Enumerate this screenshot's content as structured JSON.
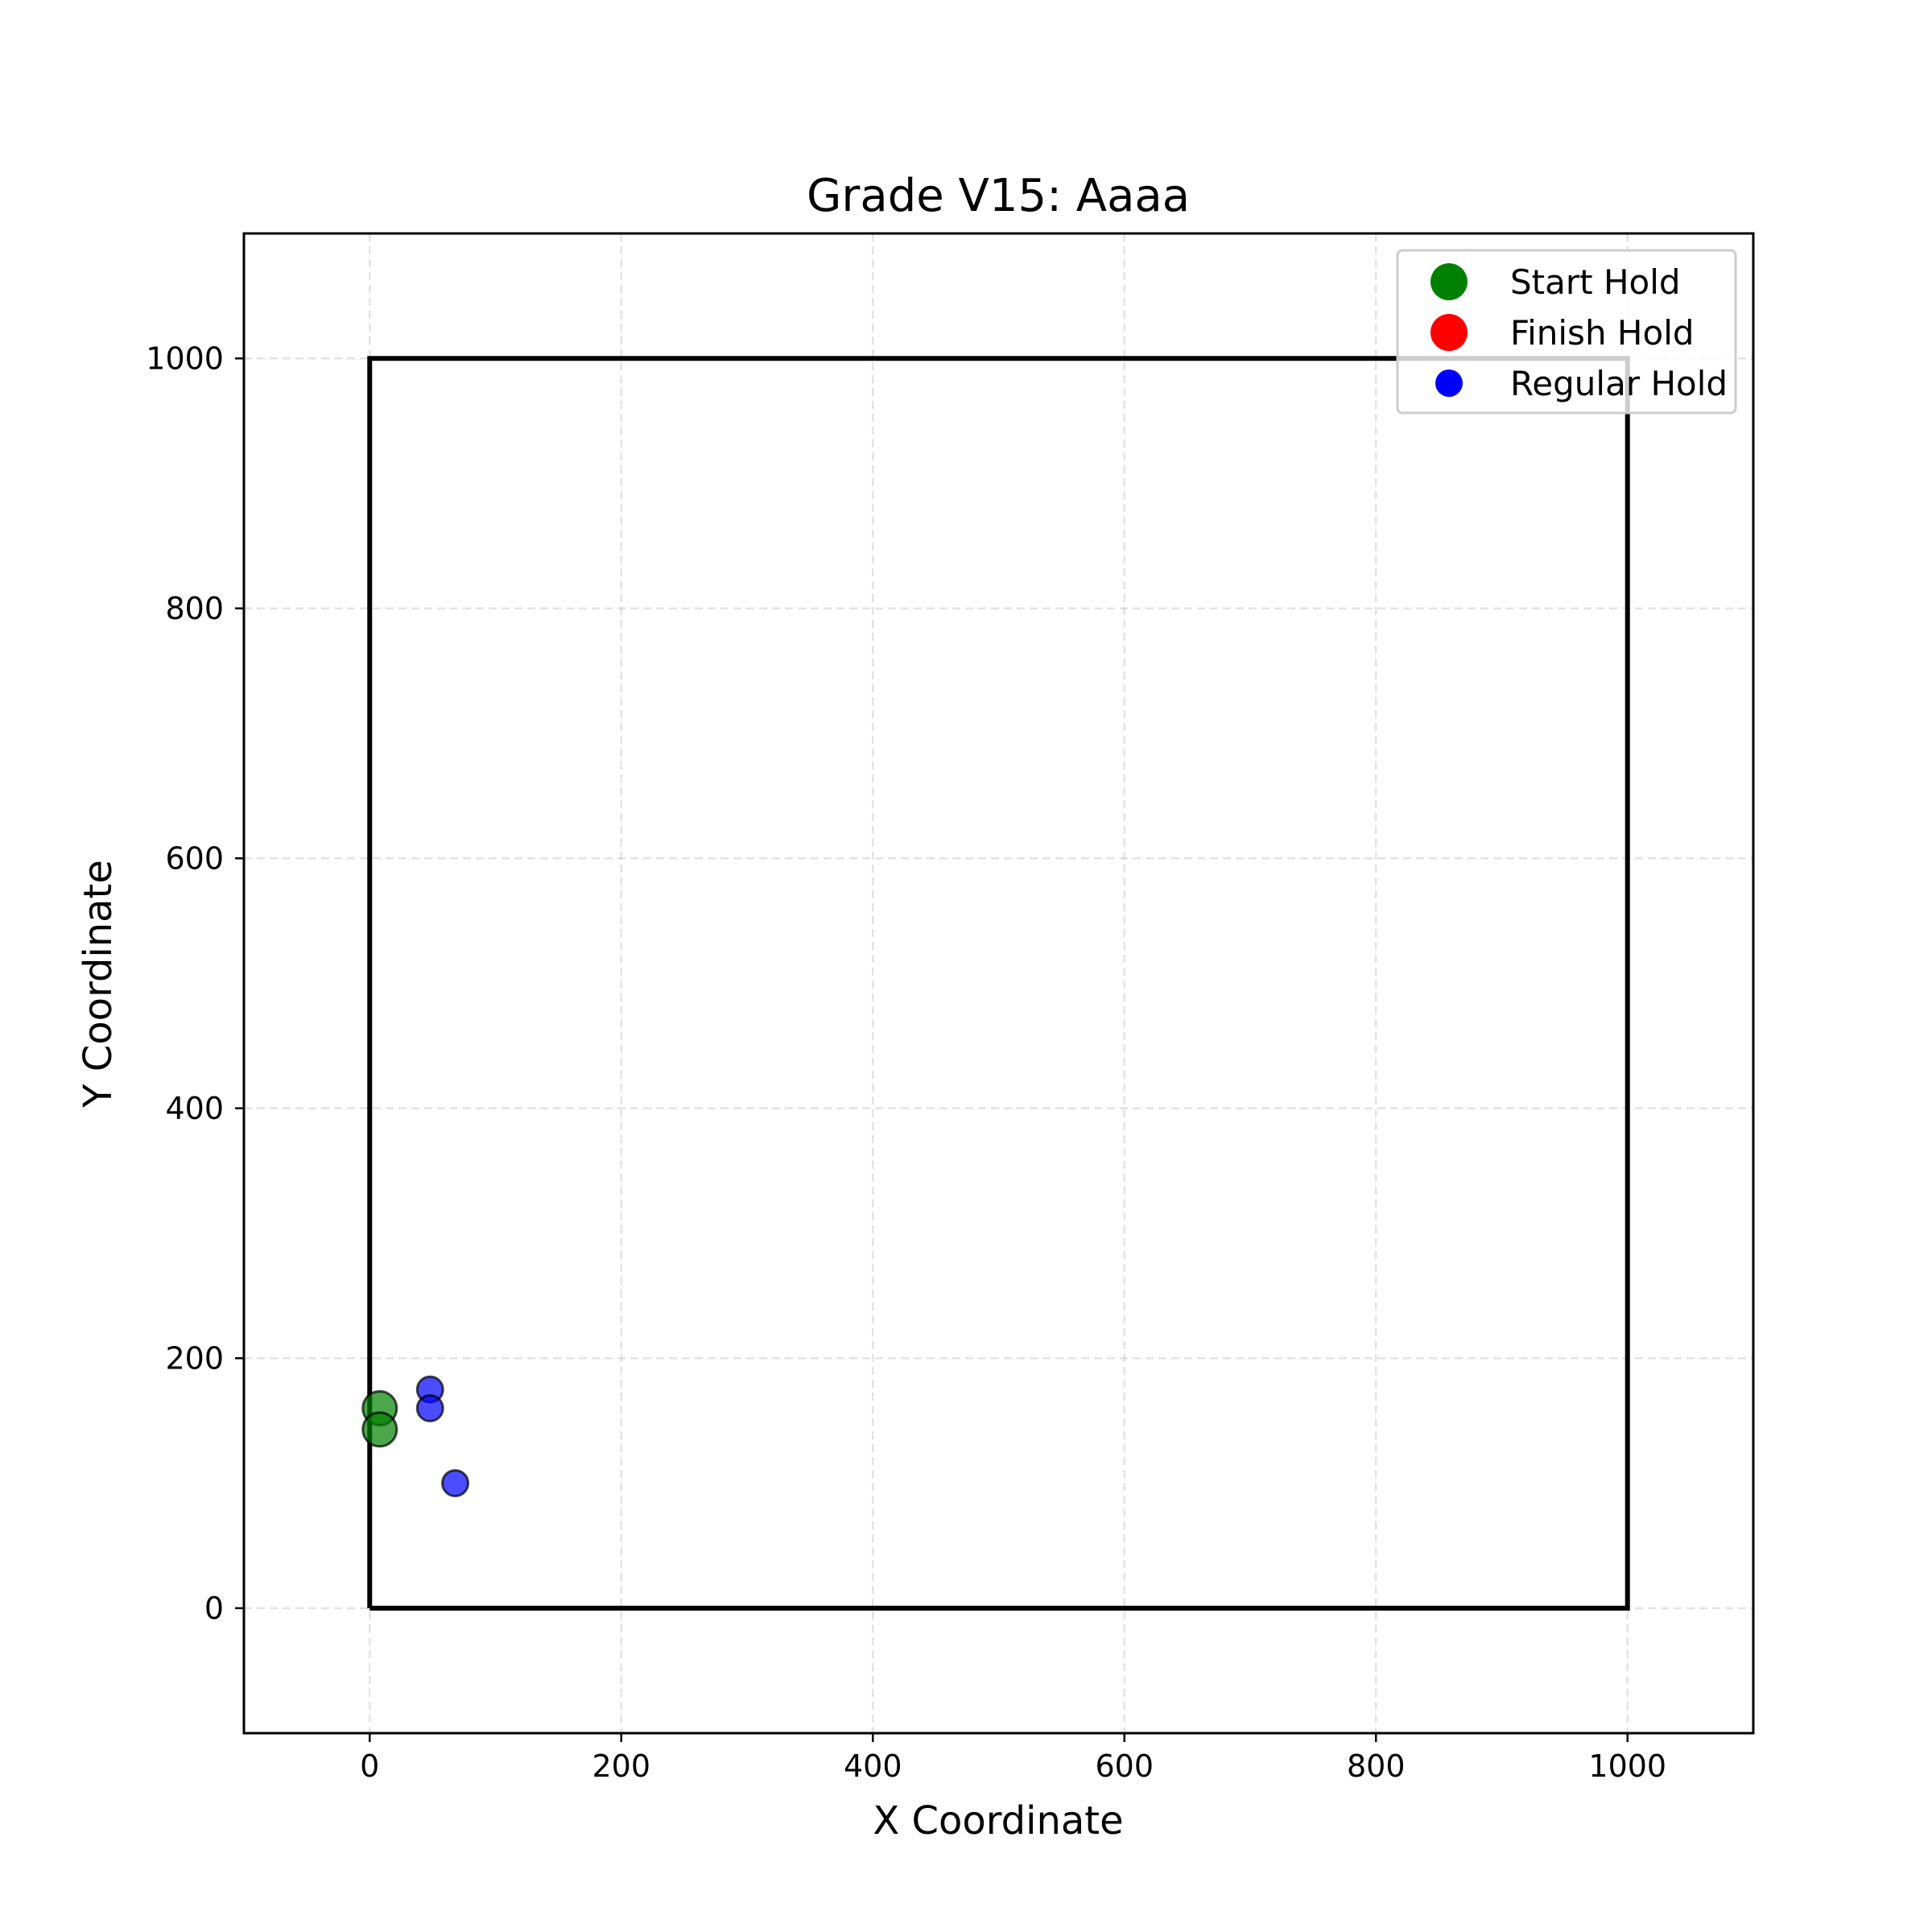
{
  "chart_data": {
    "type": "scatter",
    "title": "Grade V15: Aaaa",
    "xlabel": "X Coordinate",
    "ylabel": "Y Coordinate",
    "xlim": [
      -100,
      1100
    ],
    "ylim": [
      -100,
      1100
    ],
    "xticks": [
      0,
      200,
      400,
      600,
      800,
      1000
    ],
    "yticks": [
      0,
      200,
      400,
      600,
      800,
      1000
    ],
    "grid": true,
    "legend_position": "top-right",
    "boundary": {
      "x": [
        0,
        1000,
        1000,
        0,
        0
      ],
      "y": [
        0,
        0,
        1000,
        1000,
        0
      ],
      "color": "#000000"
    },
    "series": [
      {
        "name": "Start Hold",
        "color": "#008000",
        "points": [
          {
            "x": 8,
            "y": 160
          },
          {
            "x": 8,
            "y": 143
          }
        ]
      },
      {
        "name": "Finish Hold",
        "color": "#ff0000",
        "points": []
      },
      {
        "name": "Regular Hold",
        "color": "#0000ff",
        "points": [
          {
            "x": 48,
            "y": 175
          },
          {
            "x": 48,
            "y": 160
          },
          {
            "x": 68,
            "y": 100
          }
        ]
      }
    ]
  }
}
